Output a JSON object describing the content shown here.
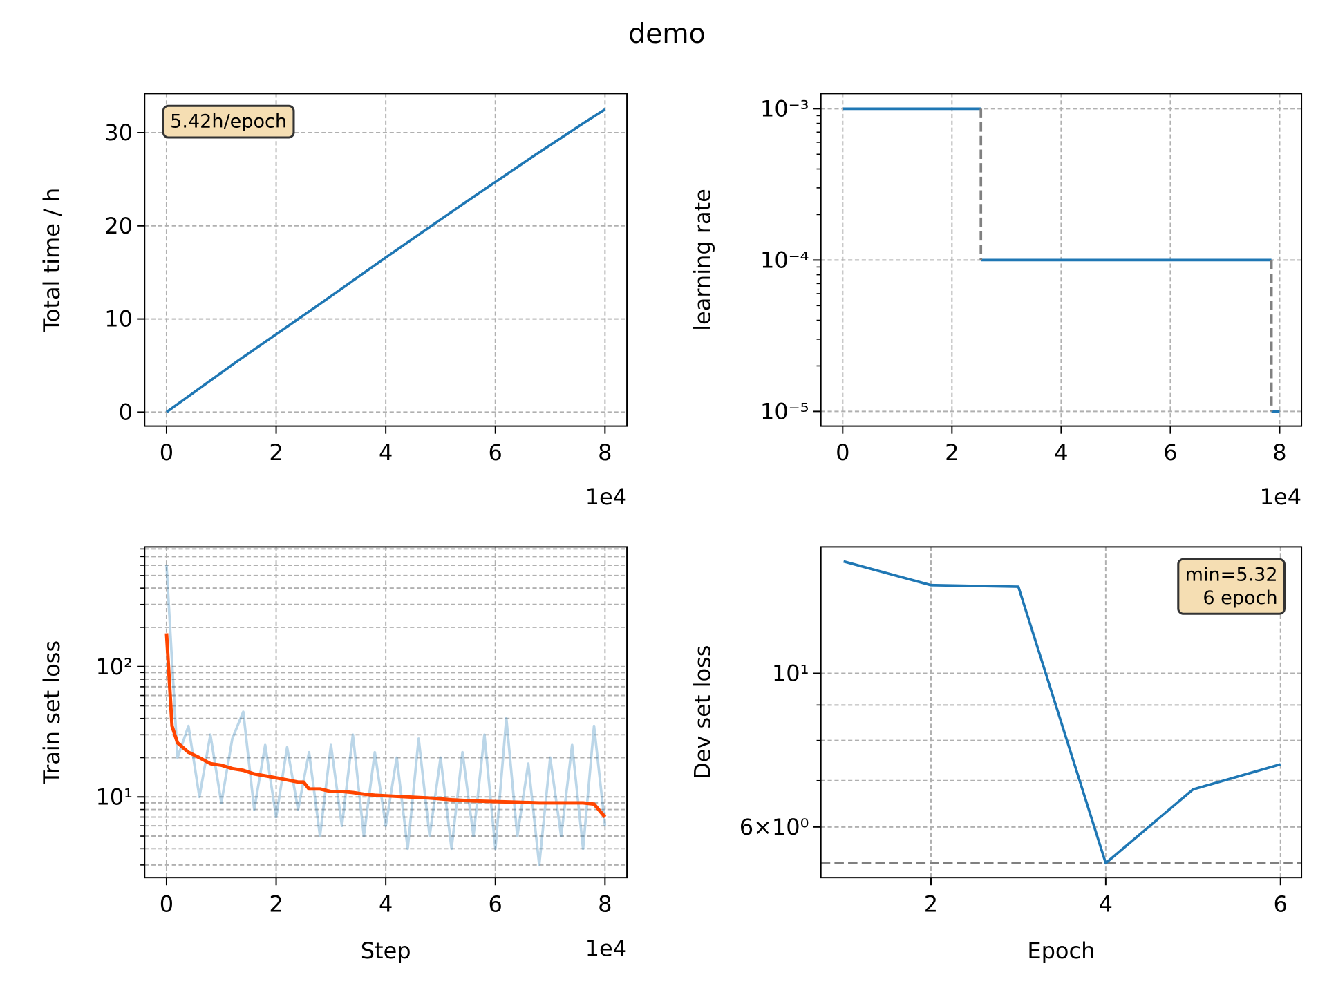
{
  "title": "demo",
  "chart_data": [
    {
      "type": "line",
      "ylabel": "Total time / h",
      "x_offset_text": "1e4",
      "grid": true,
      "xlim": [
        -4000,
        84000
      ],
      "xticks": [
        {
          "value": 0,
          "label": "0"
        },
        {
          "value": 20000,
          "label": "2"
        },
        {
          "value": 40000,
          "label": "4"
        },
        {
          "value": 60000,
          "label": "6"
        },
        {
          "value": 80000,
          "label": "8"
        }
      ],
      "ylim": [
        -1.5,
        34.2
      ],
      "yticks": [
        0,
        10,
        20,
        30
      ],
      "annotation": [
        "5.42h/epoch"
      ],
      "annotation_loc": "upper left",
      "series": [
        {
          "color": "#1f77b4",
          "x": [
            0,
            13000,
            27000,
            40000,
            54000,
            67000,
            76000,
            80000
          ],
          "values": [
            0,
            5.5,
            11.2,
            16.6,
            22.3,
            27.5,
            31,
            32.5
          ]
        }
      ]
    },
    {
      "type": "line",
      "ylabel": "learning rate",
      "x_offset_text": "1e4",
      "grid": true,
      "yscale": "log",
      "xlim": [
        -4000,
        84000
      ],
      "xticks": [
        {
          "value": 0,
          "label": "0"
        },
        {
          "value": 20000,
          "label": "2"
        },
        {
          "value": 40000,
          "label": "4"
        },
        {
          "value": 60000,
          "label": "6"
        },
        {
          "value": 80000,
          "label": "8"
        }
      ],
      "ylim": [
        8e-06,
        0.00126
      ],
      "yticks": [
        {
          "value": 0.001,
          "label": "10⁻³"
        },
        {
          "value": 0.0001,
          "label": "10⁻⁴"
        },
        {
          "value": 1e-05,
          "label": "10⁻⁵"
        }
      ],
      "yminorticks": [
        2e-05,
        3e-05,
        4e-05,
        5e-05,
        6e-05,
        7e-05,
        8e-05,
        9e-05,
        0.0002,
        0.0003,
        0.0004,
        0.0005,
        0.0006,
        0.0007,
        0.0008,
        0.0009
      ],
      "minor_grid": false,
      "series": [
        {
          "color": "#1f77b4",
          "x": [
            0,
            25300,
            25300,
            25300,
            78500,
            78500,
            78500,
            80000
          ],
          "values": [
            0.001,
            0.001,
            null,
            0.0001,
            0.0001,
            null,
            1e-05,
            1e-05
          ]
        },
        {
          "color": "#808080",
          "linestyle": "dashed",
          "x": [
            25300,
            25300,
            25300,
            78500,
            78500
          ],
          "values": [
            0.001,
            0.0001,
            null,
            0.0001,
            1e-05
          ]
        }
      ]
    },
    {
      "type": "line",
      "xlabel": "Step",
      "ylabel": "Train set loss",
      "x_offset_text": "1e4",
      "grid": true,
      "yscale": "log",
      "xlim": [
        -4000,
        84000
      ],
      "xticks": [
        {
          "value": 0,
          "label": "0"
        },
        {
          "value": 20000,
          "label": "2"
        },
        {
          "value": 40000,
          "label": "4"
        },
        {
          "value": 60000,
          "label": "6"
        },
        {
          "value": 80000,
          "label": "8"
        }
      ],
      "ylim": [
        2.4,
        830
      ],
      "yticks": [
        {
          "value": 100,
          "label": "10²"
        },
        {
          "value": 10,
          "label": "10¹"
        }
      ],
      "yminorticks": [
        3,
        4,
        5,
        6,
        7,
        8,
        9,
        20,
        30,
        40,
        50,
        60,
        70,
        80,
        90,
        200,
        300,
        400,
        500,
        600,
        700,
        800
      ],
      "minor_grid": true,
      "series": [
        {
          "color": "#1f77b4",
          "alpha": 0.3,
          "x": [
            0,
            2000,
            4000,
            6000,
            8000,
            10000,
            12000,
            14000,
            16000,
            18000,
            20000,
            22000,
            24000,
            26000,
            28000,
            30000,
            32000,
            34000,
            36000,
            38000,
            40000,
            42000,
            44000,
            46000,
            48000,
            50000,
            52000,
            54000,
            56000,
            58000,
            60000,
            62000,
            64000,
            66000,
            68000,
            70000,
            72000,
            74000,
            76000,
            78000,
            80000
          ],
          "values": [
            600,
            20,
            35,
            10,
            30,
            9,
            28,
            45,
            8,
            25,
            7,
            24,
            8,
            22,
            5,
            25,
            6,
            30,
            5,
            22,
            6,
            20,
            4,
            28,
            5,
            20,
            4,
            22,
            5,
            30,
            4,
            40,
            5,
            18,
            3,
            20,
            5,
            25,
            4,
            35,
            6
          ]
        },
        {
          "color": "#ff4500",
          "x": [
            0,
            1000,
            2000,
            4000,
            6000,
            8000,
            10000,
            12000,
            14000,
            16000,
            18000,
            20000,
            22000,
            24000,
            25000,
            26000,
            28000,
            30000,
            32000,
            34000,
            36000,
            38000,
            40000,
            44000,
            48000,
            52000,
            56000,
            60000,
            64000,
            68000,
            72000,
            76000,
            78000,
            80000
          ],
          "values": [
            180,
            35,
            26,
            22,
            20,
            18,
            17.5,
            16.5,
            16,
            15,
            14.5,
            14,
            13.5,
            13,
            13,
            11.5,
            11.5,
            11,
            11,
            10.8,
            10.5,
            10.3,
            10.2,
            10,
            9.8,
            9.5,
            9.3,
            9.2,
            9.1,
            9,
            9,
            9,
            8.8,
            7
          ]
        }
      ]
    },
    {
      "type": "line",
      "xlabel": "Epoch",
      "ylabel": "Dev set loss",
      "grid": true,
      "yscale": "log",
      "xlim": [
        0.74,
        6.24
      ],
      "xticks": [
        2,
        4,
        6
      ],
      "ylim": [
        5.07,
        15.23
      ],
      "yticks": [
        {
          "value": 6,
          "label": "6×10⁰"
        },
        {
          "value": 10,
          "label": "10¹"
        }
      ],
      "yminorticks": [
        7,
        8,
        9
      ],
      "minor_grid": true,
      "annotation": [
        "min=5.32",
        "6 epoch"
      ],
      "annotation_loc": "upper right",
      "hline": 5.32,
      "series": [
        {
          "color": "#1f77b4",
          "x": [
            1,
            2,
            3,
            4,
            5,
            6
          ],
          "values": [
            14.51,
            13.41,
            13.34,
            5.32,
            6.8,
            7.39
          ]
        }
      ]
    }
  ]
}
